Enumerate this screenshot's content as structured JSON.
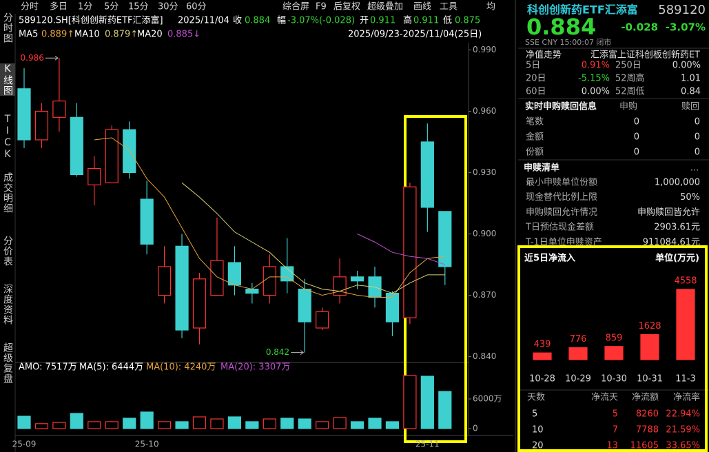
{
  "toolbar": {
    "tabs": [
      "分时",
      "多日",
      "1分",
      "5分",
      "15分",
      "30分",
      "60分"
    ],
    "tools": [
      "综合屏",
      "F9",
      "后复权",
      "超级叠加",
      "画线",
      "工具"
    ],
    "avg": "均"
  },
  "side_tabs": [
    "分时图",
    "K线图",
    "TICK",
    "成交明细",
    "分价表",
    "深度资料",
    "超级复盘"
  ],
  "quote": {
    "code": "589120.SH[科创创新药ETF汇添富]",
    "date": "2025/11/04",
    "close_label": "收",
    "close": "0.884",
    "change_label": "幅",
    "change": "-3.07%(-0.028)",
    "open_label": "开",
    "open": "0.911",
    "high_label": "高",
    "high": "0.911",
    "low_label": "低",
    "low": "0.875"
  },
  "ma_values": [
    "0.889↑",
    "0.879↑",
    "0.885↓"
  ],
  "range": "2025/09/23-2025/11/04(25日)",
  "volume_header": [
    "AMO: 7517万",
    "MA(5): 6444万",
    "MA(10): 4240万",
    "MA(20): 3307万"
  ],
  "chart_data": [
    {
      "type": "candlestick",
      "categories": [
        "25-09",
        null,
        null,
        null,
        null,
        null,
        null,
        "25-10",
        null,
        null,
        null,
        null,
        null,
        null,
        null,
        null,
        null,
        null,
        null,
        null,
        null,
        null,
        null,
        "25-11",
        null
      ],
      "open": [
        0.971,
        0.946,
        0.957,
        0.957,
        0.924,
        0.925,
        0.951,
        0.917,
        0.87,
        0.894,
        0.854,
        0.87,
        0.886,
        0.873,
        0.87,
        0.884,
        0.873,
        0.854,
        0.87,
        0.879,
        0.879,
        0.871,
        0.859,
        0.945,
        0.911
      ],
      "high": [
        0.981,
        0.964,
        0.986,
        0.964,
        0.938,
        0.953,
        0.955,
        0.926,
        0.894,
        0.9,
        0.881,
        0.908,
        0.894,
        0.876,
        0.89,
        0.898,
        0.878,
        0.864,
        0.888,
        0.882,
        0.884,
        0.872,
        0.925,
        0.954,
        0.911
      ],
      "low": [
        0.942,
        0.942,
        0.95,
        0.928,
        0.914,
        0.925,
        0.927,
        0.89,
        0.866,
        0.849,
        0.846,
        0.87,
        0.87,
        0.866,
        0.866,
        0.871,
        0.842,
        0.853,
        0.866,
        0.873,
        0.864,
        0.85,
        0.856,
        0.901,
        0.875
      ],
      "close": [
        0.946,
        0.96,
        0.965,
        0.929,
        0.932,
        0.951,
        0.93,
        0.895,
        0.884,
        0.853,
        0.878,
        0.887,
        0.875,
        0.871,
        0.884,
        0.877,
        0.857,
        0.862,
        0.879,
        0.877,
        0.869,
        0.857,
        0.923,
        0.913,
        0.884
      ],
      "up_color": "#ff3333",
      "down_color": "#3ecfcf",
      "series": [
        {
          "name": "MA5",
          "color": "#e8a33c",
          "values": [
            null,
            null,
            null,
            null,
            0.946,
            0.947,
            0.941,
            0.927,
            0.918,
            0.903,
            0.888,
            0.879,
            0.875,
            0.873,
            0.879,
            0.879,
            0.873,
            0.87,
            0.872,
            0.87,
            0.869,
            0.869,
            0.881,
            0.888,
            0.889
          ]
        },
        {
          "name": "MA10",
          "color": "#d8d070",
          "values": [
            null,
            null,
            null,
            null,
            null,
            null,
            null,
            null,
            null,
            0.925,
            0.918,
            0.91,
            0.901,
            0.896,
            0.891,
            0.883,
            0.876,
            0.873,
            0.872,
            0.875,
            0.874,
            0.871,
            0.876,
            0.88,
            0.88
          ]
        },
        {
          "name": "MA20",
          "color": "#c050d0",
          "values": [
            null,
            null,
            null,
            null,
            null,
            null,
            null,
            null,
            null,
            null,
            null,
            null,
            null,
            null,
            null,
            null,
            null,
            null,
            null,
            0.9,
            0.896,
            0.891,
            0.889,
            0.888,
            0.885
          ]
        }
      ],
      "ylim": [
        0.8375,
        0.9935
      ],
      "yticks": [
        {
          "value": 0.99,
          "label": "0.990"
        },
        {
          "value": 0.96,
          "label": "0.960"
        },
        {
          "value": 0.93,
          "label": "0.930"
        },
        {
          "value": 0.9,
          "label": "0.900"
        },
        {
          "value": 0.87,
          "label": "0.870"
        },
        {
          "value": 0.84,
          "label": "0.840"
        }
      ],
      "annotations": [
        "0.986",
        "0.842"
      ]
    },
    {
      "type": "bar",
      "values": [
        2500,
        1000,
        1250,
        3070,
        1400,
        1400,
        2100,
        3350,
        1400,
        1400,
        2370,
        1950,
        2370,
        1400,
        1950,
        2100,
        1950,
        1400,
        2230,
        1400,
        2100,
        1400,
        10740,
        10600,
        7517
      ],
      "ylim": [
        0,
        11300
      ],
      "yticks": [
        {
          "value": 6000,
          "label": "6000万"
        },
        0
      ]
    },
    {
      "type": "bar",
      "categories": [
        "10-28",
        "10-29",
        "10-30",
        "10-31",
        "11-3"
      ],
      "values": [
        439,
        776,
        859,
        1628,
        4558
      ],
      "color": "#ff3333",
      "ylim": [
        0,
        5000
      ]
    }
  ],
  "panel": {
    "name": "科创创新药ETF汇添富",
    "code": "589120",
    "price": "0.884",
    "change": "-0.028",
    "change_pct": "-3.07%",
    "status": "SSE  CNY  15:00:07  闭市",
    "nav": {
      "title": "净值走势",
      "fund": "汇添富上证科创板创新药ET",
      "rows": [
        [
          "5日",
          "0.91%",
          "250日",
          "0.00%"
        ],
        [
          "20日",
          "-5.15%",
          "52周高",
          "1.01"
        ],
        [
          "60日",
          "0.00%",
          "52周低",
          "0.84"
        ]
      ]
    },
    "realtime": {
      "title": "实时申购赎回信息",
      "columns": [
        "申购",
        "赎回"
      ],
      "rows": [
        [
          "笔数",
          0,
          0
        ],
        [
          "金额",
          0,
          0
        ],
        [
          "份额",
          0,
          0
        ]
      ]
    },
    "list": {
      "title": "申赎清单",
      "more": "...",
      "rows": [
        [
          "最小申赎单位份额",
          "1,000,000"
        ],
        [
          "现金替代比例上限",
          "50%"
        ],
        [
          "申购赎回允许情况",
          "申购赎回皆允许"
        ],
        [
          "T日预估现金差额",
          "2903.61元"
        ],
        [
          "T-1日单位申赎资产",
          "911084.61元"
        ]
      ]
    },
    "flow_title": "近5日净流入",
    "flow_unit": "单位(万元)",
    "flow_table": {
      "header": [
        "天数",
        "净流天",
        "净流额",
        "净流率"
      ],
      "rows": [
        [
          5,
          5,
          8260,
          "22.94%"
        ],
        [
          10,
          7,
          7788,
          "21.59%"
        ],
        [
          20,
          13,
          11605,
          "33.65%"
        ]
      ]
    }
  }
}
